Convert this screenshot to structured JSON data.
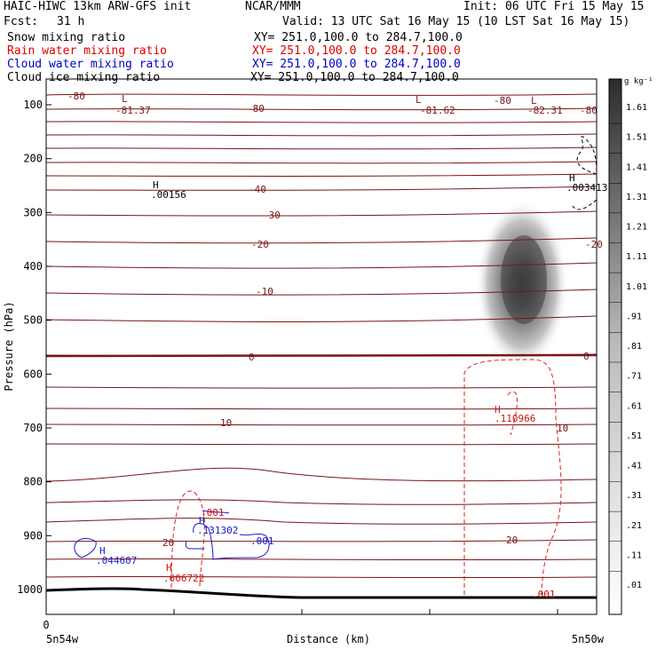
{
  "header": {
    "model": "HAIC-HIWC 13km ARW-GFS init",
    "center": "NCAR/MMM",
    "init": "Init: 06 UTC Fri 15 May 15",
    "fcst_label": "Fcst:",
    "fcst_value": "31 h",
    "valid": "Valid: 13 UTC Sat 16 May 15 (10 LST Sat 16 May 15)"
  },
  "fields": [
    {
      "name": "Snow mixing ratio",
      "xy": "XY= 251.0,100.0 to 284.7,100.0",
      "color": "#000000"
    },
    {
      "name": "Rain water mixing ratio",
      "xy": "XY= 251.0,100.0 to 284.7,100.0",
      "color": "#dd0000"
    },
    {
      "name": "Cloud water mixing ratio",
      "xy": "XY= 251.0,100.0 to 284.7,100.0",
      "color": "#0000cc"
    },
    {
      "name": "Cloud ice mixing ratio",
      "xy": "XY= 251.0,100.0 to 284.7,100.0",
      "color": "#000000"
    }
  ],
  "colors": {
    "temperature_contour": "#7a1515",
    "rain_contour": "#dd2222",
    "cloud_water_contour": "#1a1acc",
    "snow_contour": "#000000",
    "ground": "#000000"
  },
  "chart_data": {
    "type": "heatmap",
    "xlabel": "Distance (km)",
    "ylabel": "Pressure (hPa)",
    "x_ticks": [
      "0"
    ],
    "x_end_labels": [
      "5n54w",
      "5n50w"
    ],
    "y_ticks": [
      100,
      200,
      300,
      400,
      500,
      600,
      700,
      800,
      900,
      1000
    ],
    "ylim": [
      1050,
      50
    ],
    "colorbar": {
      "unit": "g kg⁻¹",
      "levels": [
        "1.61",
        "1.51",
        "1.41",
        "1.31",
        "1.21",
        "1.11",
        "1.01",
        ".91",
        ".81",
        ".71",
        ".61",
        ".51",
        ".41",
        ".31",
        ".21",
        ".11",
        ".01"
      ]
    },
    "temperature_labels": [
      "-80",
      "-81.37",
      "-80",
      "-81.62",
      "-80",
      "-82.31",
      "-80",
      "-40",
      "-30",
      "-20",
      "-20",
      "-10",
      "0",
      "0",
      "10",
      "10",
      "20",
      "20"
    ],
    "extrema_labels": [
      {
        "tag": "L",
        "value": "-81.37"
      },
      {
        "tag": "L",
        "value": "-81.62"
      },
      {
        "tag": "L",
        "value": "-82.31"
      },
      {
        "tag": "H",
        "value": ".00156"
      },
      {
        "tag": "H",
        "value": ".003413"
      },
      {
        "tag": "H",
        "value": ".110966"
      },
      {
        "tag": "H",
        "value": ".131302"
      },
      {
        "tag": "H",
        "value": ".044607"
      },
      {
        "tag": "H",
        "value": ".006722"
      }
    ],
    "rain_labels": [
      ".001",
      ".001"
    ],
    "cloud_water_labels": [
      ".001"
    ],
    "snow_max": 1.61,
    "snow_max_pressure": 430
  }
}
